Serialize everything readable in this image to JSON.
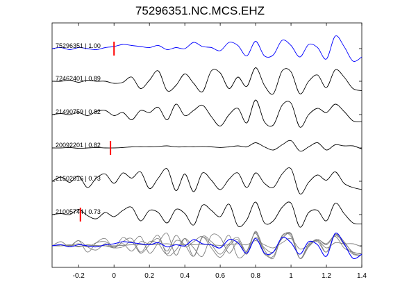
{
  "chart_data": {
    "type": "line",
    "title": "75296351.NC.MCS.EHZ",
    "xlabel": "",
    "ylabel": "",
    "xlim": [
      -0.35,
      1.4
    ],
    "xticks": [
      -0.2,
      0,
      0.2,
      0.4,
      0.6,
      0.8,
      1,
      1.2,
      1.4
    ],
    "xtick_labels": [
      "-0.2",
      "0",
      "0.2",
      "0.4",
      "0.6",
      "0.8",
      "1",
      "1.2",
      "1.4"
    ],
    "grid": false,
    "colors": {
      "reference": "#0000ff",
      "trace": "#000000",
      "stack": "#808080",
      "pick": "#ff0000"
    },
    "traces": [
      {
        "label": "75296351 | 1.00",
        "pick": 0.0,
        "color": "#0000ff",
        "x": [
          -0.35,
          -0.3,
          -0.25,
          -0.2,
          -0.15,
          -0.1,
          -0.05,
          0,
          0.05,
          0.1,
          0.15,
          0.2,
          0.25,
          0.3,
          0.35,
          0.4,
          0.45,
          0.5,
          0.55,
          0.6,
          0.65,
          0.7,
          0.75,
          0.8,
          0.85,
          0.9,
          0.95,
          1,
          1.05,
          1.1,
          1.15,
          1.2,
          1.25,
          1.3,
          1.35,
          1.4
        ],
        "y": [
          0,
          0.05,
          -0.05,
          0.05,
          0,
          -0.05,
          0.05,
          0.1,
          0.2,
          0.15,
          0.1,
          0.05,
          0.15,
          -0.05,
          0.05,
          0.0,
          0.3,
          0.1,
          0.05,
          -0.1,
          0.3,
          0.15,
          -0.35,
          0.35,
          -0.35,
          -0.3,
          0.4,
          0.15,
          -0.4,
          0.2,
          0.05,
          -0.5,
          0.6,
          0.1,
          -0.6,
          -0.4
        ]
      },
      {
        "label": "72462401 | 0.89",
        "pick": null,
        "color": "#000000",
        "x": [
          -0.35,
          -0.3,
          -0.25,
          -0.2,
          -0.15,
          -0.1,
          -0.05,
          0,
          0.05,
          0.1,
          0.15,
          0.2,
          0.25,
          0.3,
          0.35,
          0.4,
          0.45,
          0.5,
          0.55,
          0.6,
          0.65,
          0.7,
          0.75,
          0.8,
          0.85,
          0.9,
          0.95,
          1,
          1.05,
          1.1,
          1.15,
          1.2,
          1.25,
          1.3,
          1.35,
          1.4
        ],
        "y": [
          0,
          0,
          0.05,
          -0.05,
          0.05,
          0,
          0,
          -0.1,
          -0.05,
          0.2,
          -0.35,
          0.05,
          0.5,
          -0.45,
          -0.2,
          0.35,
          -0.1,
          -0.5,
          0.5,
          0.4,
          -0.35,
          0.2,
          -0.25,
          0.65,
          -0.2,
          -0.6,
          0.5,
          0.45,
          -0.6,
          0.0,
          0.3,
          -0.3,
          0.55,
          0.2,
          -0.35,
          -0.45
        ]
      },
      {
        "label": "21490759 | 0.82",
        "pick": null,
        "color": "#000000",
        "x": [
          -0.35,
          -0.3,
          -0.25,
          -0.2,
          -0.15,
          -0.1,
          -0.05,
          0,
          0.05,
          0.1,
          0.15,
          0.2,
          0.25,
          0.3,
          0.35,
          0.4,
          0.45,
          0.5,
          0.55,
          0.6,
          0.65,
          0.7,
          0.75,
          0.8,
          0.85,
          0.9,
          0.95,
          1,
          1.05,
          1.1,
          1.15,
          1.2,
          1.25,
          1.3,
          1.35,
          1.4
        ],
        "y": [
          0,
          0.05,
          0,
          0.1,
          -0.05,
          0.15,
          0.2,
          -0.05,
          0.1,
          -0.25,
          0.2,
          0.1,
          0.35,
          -0.25,
          0.5,
          -0.05,
          0.2,
          0.45,
          -0.1,
          -0.55,
          0.0,
          0.3,
          -0.4,
          0.7,
          -0.35,
          -0.5,
          0.45,
          0.55,
          -0.6,
          0.0,
          0.3,
          0.1,
          0.5,
          0.15,
          -0.3,
          -0.35
        ]
      },
      {
        "label": "20092201 | 0.82",
        "pick": -0.02,
        "color": "#000000",
        "x": [
          -0.35,
          -0.3,
          -0.25,
          -0.2,
          -0.15,
          -0.1,
          -0.05,
          0,
          0.05,
          0.1,
          0.15,
          0.2,
          0.25,
          0.3,
          0.35,
          0.4,
          0.45,
          0.5,
          0.55,
          0.6,
          0.65,
          0.7,
          0.75,
          0.8,
          0.85,
          0.9,
          0.95,
          1,
          1.05,
          1.1,
          1.15,
          1.2,
          1.25,
          1.3,
          1.35,
          1.4
        ],
        "y": [
          0,
          0,
          0.02,
          -0.02,
          0,
          0.02,
          0,
          0,
          0.02,
          0.05,
          0.05,
          0.05,
          0.07,
          0.1,
          0.05,
          0.05,
          0.05,
          0.07,
          0.05,
          0.02,
          0.05,
          0.1,
          0.05,
          0.25,
          0.05,
          -0.1,
          0.15,
          0.35,
          -0.15,
          0.05,
          0.25,
          -0.1,
          0.15,
          0.1,
          0.1,
          -0.05
        ]
      },
      {
        "label": "21502016 | 0.73",
        "pick": null,
        "color": "#000000",
        "x": [
          -0.35,
          -0.3,
          -0.25,
          -0.2,
          -0.15,
          -0.1,
          -0.05,
          0,
          0.05,
          0.1,
          0.15,
          0.2,
          0.25,
          0.3,
          0.35,
          0.4,
          0.45,
          0.5,
          0.55,
          0.6,
          0.65,
          0.7,
          0.75,
          0.8,
          0.85,
          0.9,
          0.95,
          1,
          1.05,
          1.1,
          1.15,
          1.2,
          1.25,
          1.3,
          1.35,
          1.4
        ],
        "y": [
          0,
          0.2,
          -0.05,
          0.25,
          -0.3,
          0.15,
          0.35,
          -0.1,
          0.4,
          0.15,
          0.45,
          -0.35,
          0.15,
          0.6,
          -0.45,
          0.35,
          -0.5,
          0.4,
          0.05,
          -0.4,
          0.1,
          0.4,
          -0.3,
          0.4,
          -0.1,
          -0.3,
          0.35,
          0.6,
          -0.6,
          -0.05,
          0.3,
          0.05,
          0.45,
          -0.1,
          -0.3,
          -0.4
        ]
      },
      {
        "label": "21005744 | 0.73",
        "pick": -0.19,
        "color": "#000000",
        "x": [
          -0.35,
          -0.3,
          -0.25,
          -0.2,
          -0.15,
          -0.1,
          -0.05,
          0,
          0.05,
          0.1,
          0.15,
          0.2,
          0.25,
          0.3,
          0.35,
          0.4,
          0.45,
          0.5,
          0.55,
          0.6,
          0.65,
          0.7,
          0.75,
          0.8,
          0.85,
          0.9,
          0.95,
          1,
          1.05,
          1.1,
          1.15,
          1.2,
          1.25,
          1.3,
          1.35,
          1.4
        ],
        "y": [
          0,
          0.05,
          0,
          0.25,
          -0.05,
          -0.2,
          0.1,
          -0.1,
          0.2,
          0.35,
          -0.3,
          0.2,
          0.1,
          -0.4,
          0.25,
          0.05,
          -0.5,
          0.45,
          0.2,
          -0.1,
          0.5,
          -0.55,
          -0.25,
          0.6,
          -0.4,
          -0.3,
          0.35,
          0.55,
          -0.6,
          0.1,
          0.2,
          -0.3,
          0.55,
          0.05,
          -0.4,
          -0.45
        ]
      }
    ]
  }
}
